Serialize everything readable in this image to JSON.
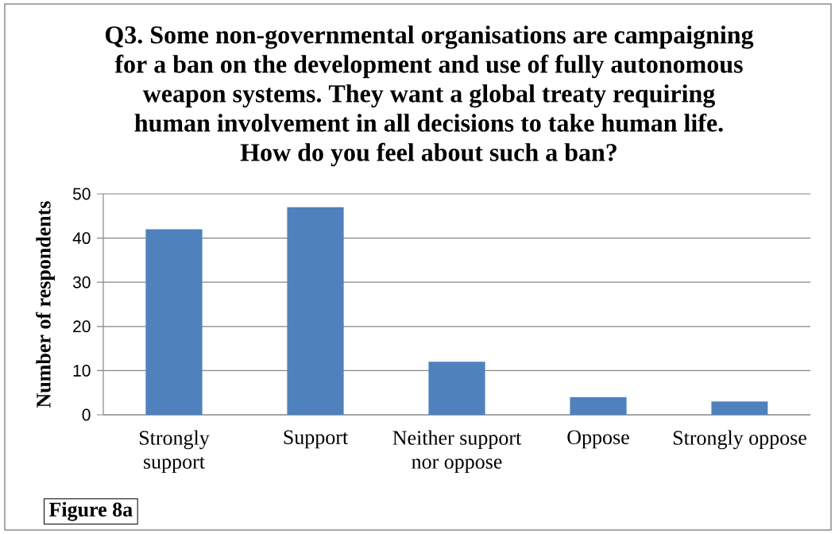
{
  "chart_data": {
    "type": "bar",
    "title": "Q3. Some non-governmental organisations are campaigning for a ban on the development and use of fully autonomous weapon systems. They want a global treaty requiring human involvement in all decisions to take human life.",
    "subtitle": "How do you feel about such a ban?",
    "ylabel": "Number of respondents",
    "categories": [
      "Strongly support",
      "Support",
      "Neither support nor oppose",
      "Oppose",
      "Strongly oppose"
    ],
    "values": [
      42,
      47,
      12,
      4,
      3
    ],
    "color": "#4f81bd",
    "ylim": [
      0,
      50
    ],
    "yticks": [
      0,
      10,
      20,
      30,
      40,
      50
    ],
    "grid": "y",
    "annotations": [
      "Figure 8a"
    ]
  }
}
